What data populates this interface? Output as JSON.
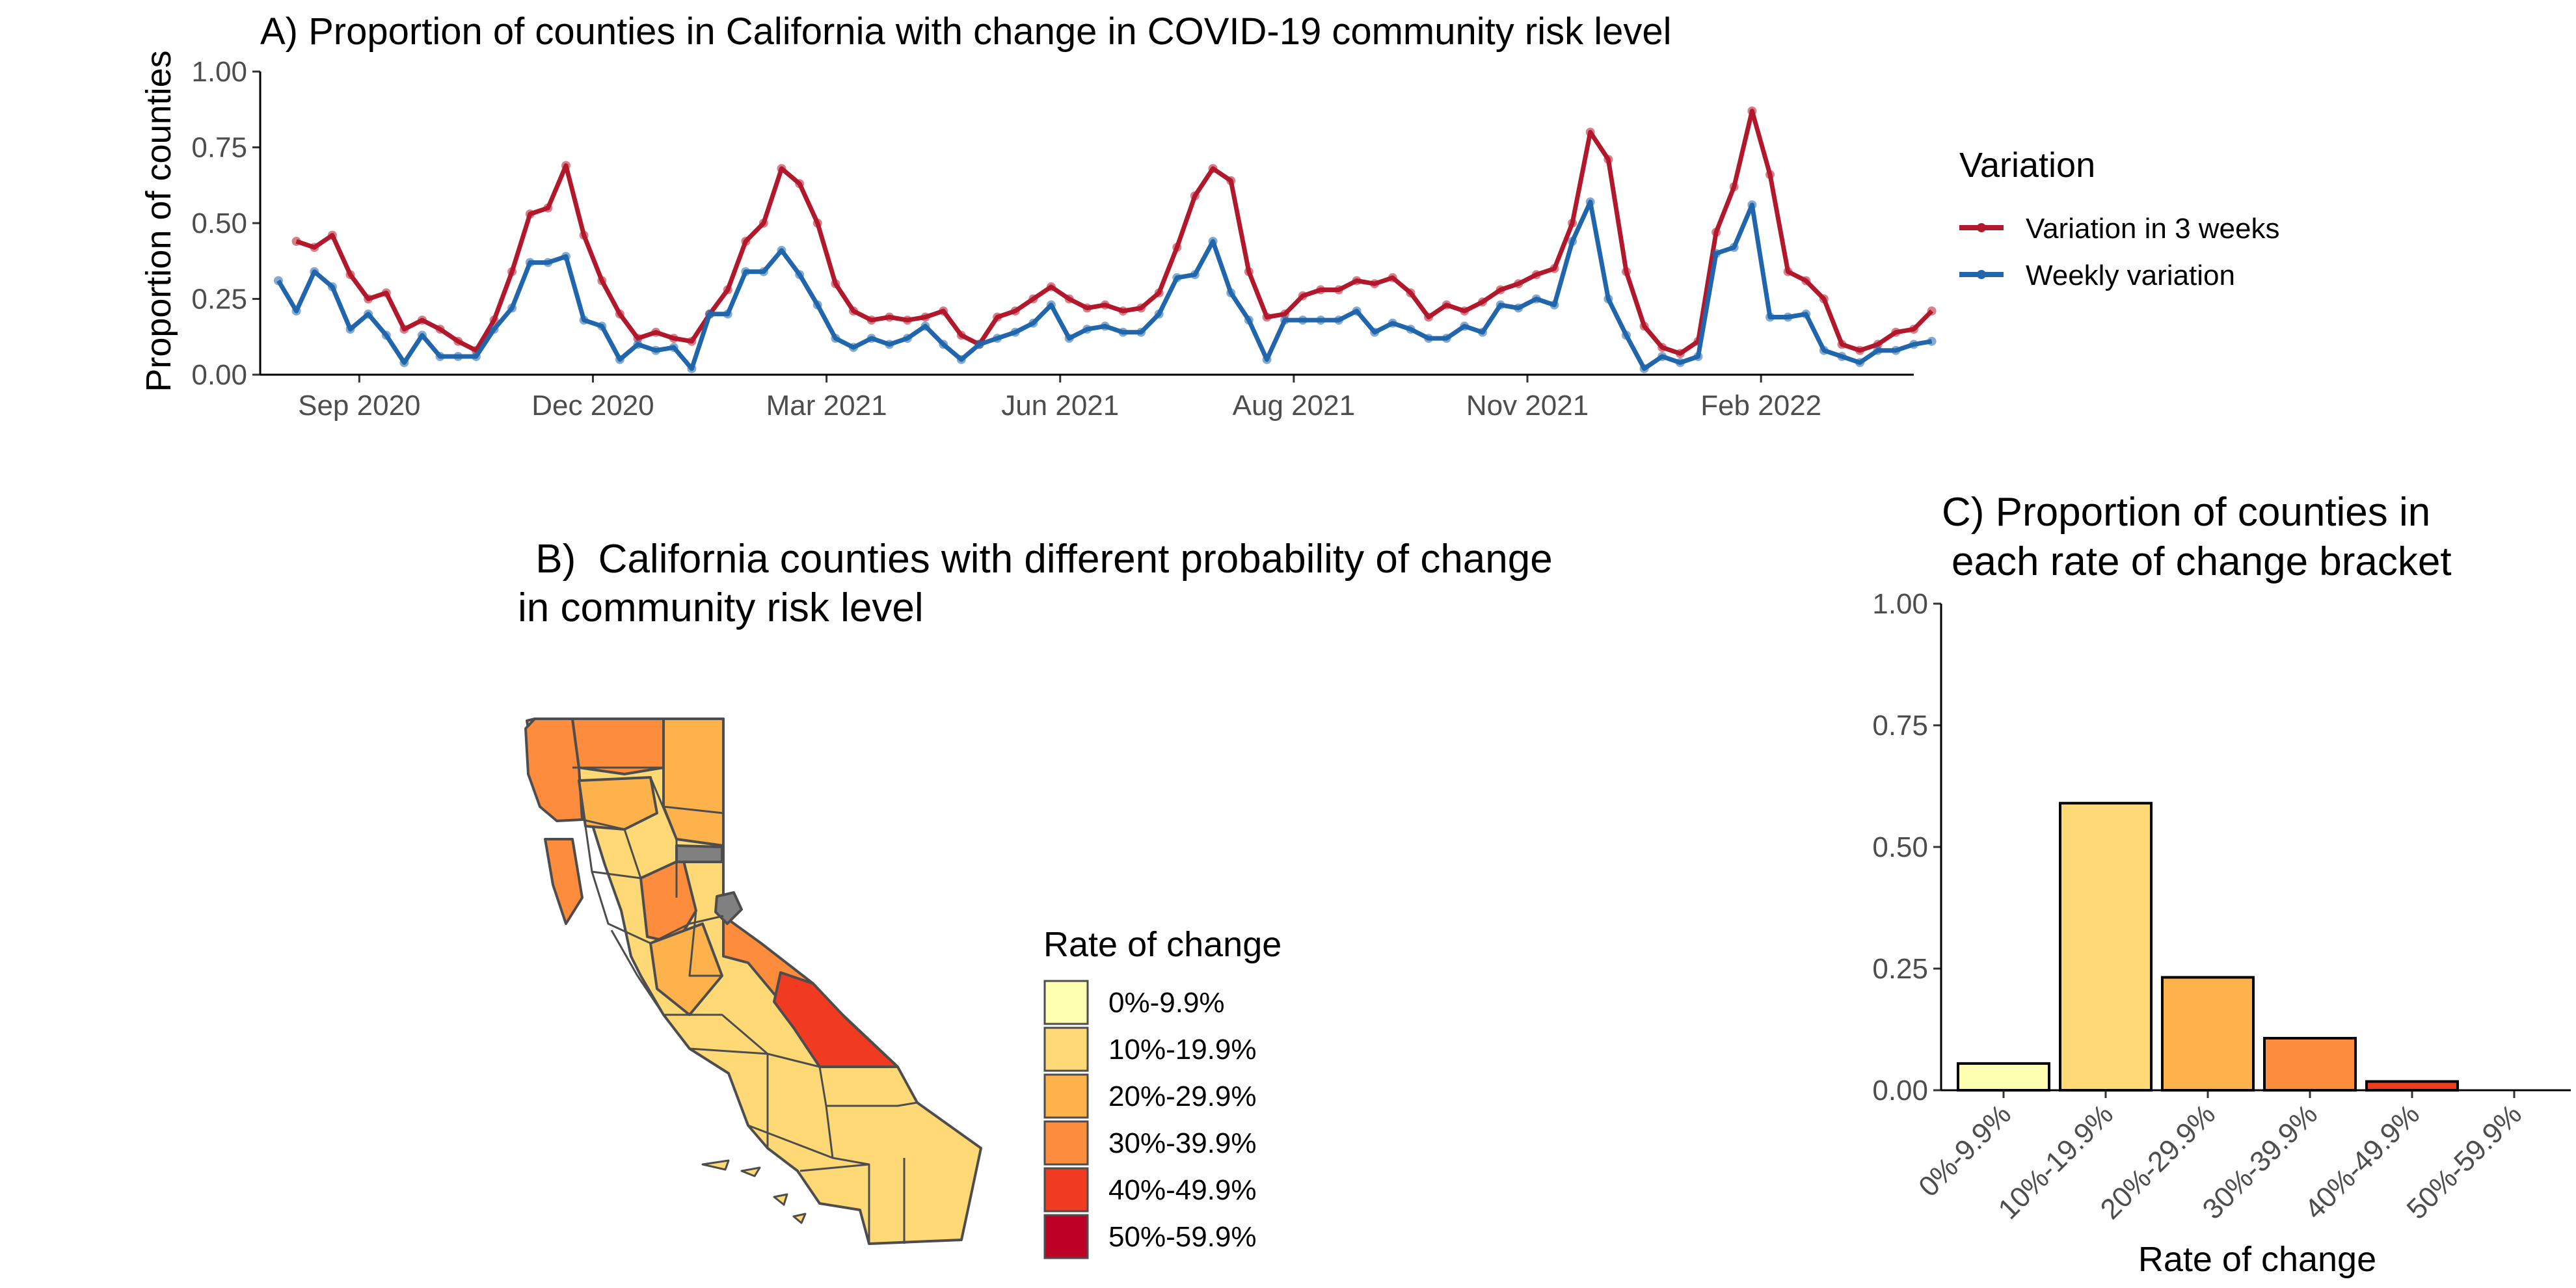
{
  "colors": {
    "red": "#B2182B",
    "blue": "#2166AC",
    "na": "#808080",
    "outline": "#4d4d4d",
    "bins": [
      "#FFFFB2",
      "#FED976",
      "#FEB24C",
      "#FD8D3C",
      "#F03B20",
      "#BD0026"
    ]
  },
  "chart_data": [
    {
      "type": "line",
      "title": "A) Proportion of counties in California with change in COVID-19 community risk level",
      "xlabel": "",
      "ylabel": "Proportion of counties",
      "ylim": [
        0,
        1
      ],
      "yticks": [
        "0.00",
        "0.25",
        "0.50",
        "0.75",
        "1.00"
      ],
      "xticks": [
        "Sep 2020",
        "Dec 2020",
        "Mar 2021",
        "Jun 2021",
        "Aug 2021",
        "Nov 2021",
        "Feb 2022"
      ],
      "legend": {
        "title": "Variation",
        "position": "right",
        "entries": [
          "Variation in 3 weeks",
          "Weekly variation"
        ]
      },
      "series": [
        {
          "name": "Variation in 3 weeks",
          "color": "#B2182B",
          "values": [
            0.44,
            0.42,
            0.46,
            0.33,
            0.25,
            0.27,
            0.15,
            0.18,
            0.15,
            0.11,
            0.08,
            0.18,
            0.34,
            0.53,
            0.55,
            0.69,
            0.46,
            0.31,
            0.2,
            0.12,
            0.14,
            0.12,
            0.11,
            0.2,
            0.28,
            0.44,
            0.5,
            0.68,
            0.63,
            0.5,
            0.3,
            0.21,
            0.18,
            0.19,
            0.18,
            0.19,
            0.21,
            0.13,
            0.1,
            0.19,
            0.21,
            0.25,
            0.29,
            0.25,
            0.22,
            0.23,
            0.21,
            0.22,
            0.27,
            0.42,
            0.59,
            0.68,
            0.64,
            0.34,
            0.19,
            0.2,
            0.26,
            0.28,
            0.28,
            0.31,
            0.3,
            0.32,
            0.27,
            0.19,
            0.23,
            0.21,
            0.24,
            0.28,
            0.3,
            0.33,
            0.35,
            0.5,
            0.8,
            0.71,
            0.34,
            0.16,
            0.09,
            0.07,
            0.11,
            0.47,
            0.62,
            0.87,
            0.66,
            0.34,
            0.31,
            0.25,
            0.1,
            0.08,
            0.1,
            0.14,
            0.15,
            0.21
          ]
        },
        {
          "name": "Weekly variation",
          "color": "#2166AC",
          "values": [
            0.31,
            0.21,
            0.34,
            0.29,
            0.15,
            0.2,
            0.13,
            0.04,
            0.13,
            0.06,
            0.06,
            0.06,
            0.15,
            0.22,
            0.37,
            0.37,
            0.39,
            0.18,
            0.16,
            0.05,
            0.1,
            0.08,
            0.09,
            0.02,
            0.2,
            0.2,
            0.34,
            0.34,
            0.41,
            0.33,
            0.23,
            0.12,
            0.09,
            0.12,
            0.1,
            0.12,
            0.16,
            0.1,
            0.05,
            0.1,
            0.12,
            0.14,
            0.17,
            0.23,
            0.12,
            0.15,
            0.16,
            0.14,
            0.14,
            0.2,
            0.32,
            0.33,
            0.44,
            0.27,
            0.18,
            0.05,
            0.18,
            0.18,
            0.18,
            0.18,
            0.21,
            0.14,
            0.17,
            0.15,
            0.12,
            0.12,
            0.16,
            0.14,
            0.23,
            0.22,
            0.25,
            0.23,
            0.44,
            0.57,
            0.25,
            0.13,
            0.02,
            0.06,
            0.04,
            0.06,
            0.4,
            0.42,
            0.56,
            0.19,
            0.19,
            0.2,
            0.08,
            0.06,
            0.04,
            0.08,
            0.08,
            0.1,
            0.11
          ]
        }
      ]
    },
    {
      "type": "map",
      "title": " B)  California counties with different probability of change",
      "title_line2": "in community risk level",
      "legend": {
        "title": "Rate of change",
        "position": "right",
        "entries": [
          "0%-9.9%",
          "10%-19.9%",
          "20%-29.9%",
          "30%-39.9%",
          "40%-49.9%",
          "50%-59.9%"
        ]
      }
    },
    {
      "type": "bar",
      "title": "C) Proportion of counties in",
      "title_line2": "each rate of change bracket",
      "xlabel": "Rate of change",
      "ylabel": "",
      "ylim": [
        0,
        1
      ],
      "yticks": [
        "0.00",
        "0.25",
        "0.50",
        "0.75",
        "1.00"
      ],
      "categories": [
        "0%-9.9%",
        "10%-19.9%",
        "20%-29.9%",
        "30%-39.9%",
        "40%-49.9%",
        "50%-59.9%"
      ],
      "values": [
        0.055,
        0.59,
        0.232,
        0.107,
        0.018,
        0
      ]
    }
  ]
}
